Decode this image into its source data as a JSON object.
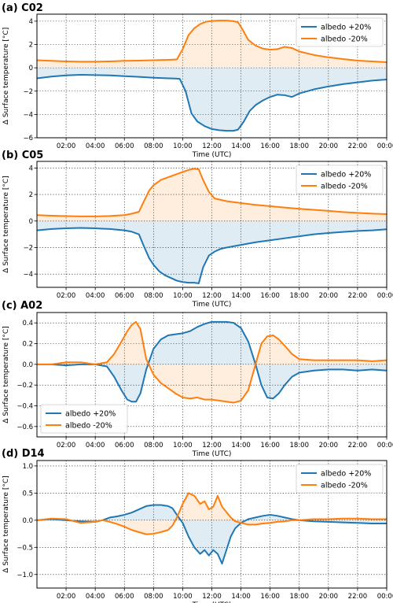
{
  "colors": {
    "albedo_plus": "#1f77b4",
    "albedo_minus": "#ff7f0e",
    "grid": "#000000"
  },
  "chart_data": [
    {
      "type": "line",
      "panel_label": "(a) C02",
      "xlabel": "Time (UTC)",
      "ylabel": "Δ Surface temperature [°C]",
      "xlim": [
        0,
        24
      ],
      "ylim": [
        -6,
        4.6
      ],
      "xticks": [
        2,
        4,
        6,
        8,
        10,
        12,
        14,
        16,
        18,
        20,
        22,
        24
      ],
      "xtick_labels": [
        "02:00",
        "04:00",
        "06:00",
        "08:00",
        "10:00",
        "12:00",
        "14:00",
        "16:00",
        "18:00",
        "20:00",
        "22:00",
        "00:00"
      ],
      "yticks": [
        -6,
        -4,
        -2,
        0,
        2,
        4
      ],
      "ytick_labels": [
        "−6",
        "−4",
        "−2",
        "0",
        "2",
        "4"
      ],
      "legend_position": "upper right",
      "grid": true,
      "series": [
        {
          "name": "albedo +20%",
          "color_key": "albedo_plus",
          "x": [
            0,
            1,
            2,
            3,
            4,
            5,
            6,
            7,
            8,
            9,
            9.5,
            9.8,
            10.2,
            10.6,
            11,
            11.5,
            12,
            12.5,
            13,
            13.5,
            13.8,
            14.2,
            14.6,
            15,
            15.5,
            16,
            16.5,
            17,
            17.5,
            18,
            19,
            20,
            21,
            22,
            23,
            24
          ],
          "y": [
            -0.9,
            -0.75,
            -0.65,
            -0.6,
            -0.62,
            -0.65,
            -0.72,
            -0.78,
            -0.85,
            -0.9,
            -0.92,
            -0.95,
            -2.0,
            -3.9,
            -4.6,
            -5.0,
            -5.25,
            -5.35,
            -5.4,
            -5.4,
            -5.3,
            -4.6,
            -3.7,
            -3.2,
            -2.8,
            -2.5,
            -2.3,
            -2.35,
            -2.5,
            -2.2,
            -1.85,
            -1.6,
            -1.4,
            -1.25,
            -1.1,
            -1.0
          ]
        },
        {
          "name": "albedo -20%",
          "color_key": "albedo_minus",
          "x": [
            0,
            1,
            2,
            3,
            4,
            5,
            6,
            7,
            8,
            9,
            9.6,
            10,
            10.4,
            10.8,
            11.2,
            11.6,
            12,
            12.5,
            13,
            13.5,
            13.8,
            14.1,
            14.5,
            15,
            15.5,
            16,
            16.5,
            17,
            17.5,
            18,
            19,
            20,
            21,
            22,
            23,
            24
          ],
          "y": [
            0.65,
            0.6,
            0.55,
            0.52,
            0.52,
            0.55,
            0.6,
            0.62,
            0.65,
            0.68,
            0.72,
            1.6,
            2.8,
            3.4,
            3.75,
            3.95,
            4.02,
            4.05,
            4.05,
            4.0,
            3.9,
            3.3,
            2.4,
            1.9,
            1.65,
            1.55,
            1.6,
            1.8,
            1.7,
            1.4,
            1.1,
            0.9,
            0.75,
            0.62,
            0.55,
            0.48
          ]
        }
      ]
    },
    {
      "type": "line",
      "panel_label": "(b) C05",
      "xlabel": "Time (UTC)",
      "ylabel": "Δ Surface temperature [°C]",
      "xlim": [
        0,
        24
      ],
      "ylim": [
        -5,
        4.5
      ],
      "xticks": [
        2,
        4,
        6,
        8,
        10,
        12,
        14,
        16,
        18,
        20,
        22,
        24
      ],
      "xtick_labels": [
        "02:00",
        "04:00",
        "06:00",
        "08:00",
        "10:00",
        "12:00",
        "14:00",
        "16:00",
        "18:00",
        "20:00",
        "22:00",
        "00:00"
      ],
      "yticks": [
        -4,
        -2,
        0,
        2,
        4
      ],
      "ytick_labels": [
        "−4",
        "−2",
        "0",
        "2",
        "4"
      ],
      "legend_position": "upper right",
      "grid": true,
      "series": [
        {
          "name": "albedo +20%",
          "color_key": "albedo_plus",
          "x": [
            0,
            1,
            2,
            3,
            4,
            5,
            6,
            6.5,
            7,
            7.3,
            7.7,
            8,
            8.4,
            8.8,
            9.2,
            9.6,
            10,
            10.4,
            10.8,
            11.1,
            11.4,
            11.8,
            12.2,
            12.6,
            13,
            14,
            15,
            16,
            17,
            18,
            19,
            20,
            21,
            22,
            23,
            24
          ],
          "y": [
            -0.7,
            -0.6,
            -0.55,
            -0.52,
            -0.55,
            -0.6,
            -0.7,
            -0.8,
            -1.0,
            -1.8,
            -2.8,
            -3.3,
            -3.8,
            -4.1,
            -4.3,
            -4.5,
            -4.6,
            -4.65,
            -4.65,
            -4.7,
            -3.5,
            -2.6,
            -2.3,
            -2.1,
            -2.0,
            -1.8,
            -1.6,
            -1.45,
            -1.3,
            -1.15,
            -1.0,
            -0.9,
            -0.82,
            -0.75,
            -0.7,
            -0.62
          ]
        },
        {
          "name": "albedo -20%",
          "color_key": "albedo_minus",
          "x": [
            0,
            1,
            2,
            3,
            4,
            5,
            6,
            6.5,
            7,
            7.3,
            7.7,
            8,
            8.5,
            9,
            9.5,
            10,
            10.4,
            10.8,
            11.1,
            11.4,
            11.8,
            12.2,
            13,
            14,
            15,
            16,
            17,
            18,
            19,
            20,
            21,
            22,
            23,
            24
          ],
          "y": [
            0.45,
            0.4,
            0.37,
            0.35,
            0.35,
            0.38,
            0.45,
            0.55,
            0.7,
            1.4,
            2.3,
            2.7,
            3.1,
            3.3,
            3.5,
            3.7,
            3.85,
            3.95,
            3.9,
            3.1,
            2.2,
            1.7,
            1.5,
            1.35,
            1.22,
            1.12,
            1.02,
            0.92,
            0.85,
            0.77,
            0.68,
            0.62,
            0.56,
            0.52
          ]
        }
      ]
    },
    {
      "type": "line",
      "panel_label": "(c) A02",
      "xlabel": "Time (UTC)",
      "ylabel": "Δ Surface temperature [°C]",
      "xlim": [
        0,
        24
      ],
      "ylim": [
        -0.7,
        0.5
      ],
      "xticks": [
        2,
        4,
        6,
        8,
        10,
        12,
        14,
        16,
        18,
        20,
        22,
        24
      ],
      "xtick_labels": [
        "02:00",
        "04:00",
        "06:00",
        "08:00",
        "10:00",
        "12:00",
        "14:00",
        "16:00",
        "18:00",
        "20:00",
        "22:00",
        "00:00"
      ],
      "yticks": [
        -0.6,
        -0.4,
        -0.2,
        0.0,
        0.2,
        0.4
      ],
      "ytick_labels": [
        "−0.6",
        "−0.4",
        "−0.2",
        "0.0",
        "0.2",
        "0.4"
      ],
      "legend_position": "lower left",
      "grid": true,
      "series": [
        {
          "name": "albedo +20%",
          "color_key": "albedo_plus",
          "x": [
            0,
            1,
            2,
            3,
            4,
            4.8,
            5.3,
            5.8,
            6.2,
            6.5,
            6.8,
            7.1,
            7.5,
            8,
            8.5,
            9,
            9.5,
            10,
            10.5,
            11,
            11.5,
            12,
            12.5,
            13,
            13.5,
            14,
            14.5,
            15,
            15.4,
            15.8,
            16.2,
            16.6,
            17,
            17.5,
            18,
            19,
            20,
            21,
            22,
            23,
            24
          ],
          "y": [
            0.0,
            0.0,
            -0.01,
            0.0,
            0.0,
            -0.02,
            -0.12,
            -0.25,
            -0.34,
            -0.36,
            -0.36,
            -0.28,
            -0.05,
            0.15,
            0.24,
            0.28,
            0.29,
            0.3,
            0.32,
            0.36,
            0.39,
            0.41,
            0.41,
            0.41,
            0.4,
            0.35,
            0.22,
            0.0,
            -0.2,
            -0.32,
            -0.33,
            -0.28,
            -0.2,
            -0.12,
            -0.08,
            -0.06,
            -0.05,
            -0.05,
            -0.06,
            -0.05,
            -0.06
          ]
        },
        {
          "name": "albedo -20%",
          "color_key": "albedo_minus",
          "x": [
            0,
            1,
            2,
            3,
            4,
            4.8,
            5.3,
            5.8,
            6.2,
            6.5,
            6.8,
            7.1,
            7.5,
            8,
            8.5,
            9,
            9.5,
            10,
            10.5,
            11,
            11.5,
            12,
            12.5,
            13,
            13.5,
            14,
            14.5,
            15,
            15.4,
            15.8,
            16.2,
            16.6,
            17,
            17.5,
            18,
            19,
            20,
            21,
            22,
            23,
            24
          ],
          "y": [
            0.0,
            0.0,
            0.02,
            0.02,
            0.0,
            0.02,
            0.1,
            0.22,
            0.32,
            0.38,
            0.41,
            0.34,
            0.05,
            -0.1,
            -0.18,
            -0.23,
            -0.28,
            -0.32,
            -0.33,
            -0.32,
            -0.34,
            -0.34,
            -0.35,
            -0.36,
            -0.37,
            -0.35,
            -0.25,
            0.0,
            0.2,
            0.27,
            0.28,
            0.24,
            0.18,
            0.1,
            0.05,
            0.04,
            0.04,
            0.04,
            0.04,
            0.03,
            0.04
          ]
        }
      ]
    },
    {
      "type": "line",
      "panel_label": "(d) D14",
      "xlabel": "Time (UTC)",
      "ylabel": "Δ Surface temperature [°C]",
      "xlim": [
        0,
        24
      ],
      "ylim": [
        -1.25,
        1.1
      ],
      "xticks": [
        2,
        4,
        6,
        8,
        10,
        12,
        14,
        16,
        18,
        20,
        22,
        24
      ],
      "xtick_labels": [
        "02:00",
        "04:00",
        "06:00",
        "08:00",
        "10:00",
        "12:00",
        "14:00",
        "16:00",
        "18:00",
        "20:00",
        "22:00",
        "00:00"
      ],
      "yticks": [
        -1.0,
        -0.5,
        0.0,
        0.5,
        1.0
      ],
      "ytick_labels": [
        "−1.0",
        "−0.5",
        "0.0",
        "0.5",
        "1.0"
      ],
      "legend_position": "upper right",
      "grid": true,
      "series": [
        {
          "name": "albedo +20%",
          "color_key": "albedo_plus",
          "x": [
            0,
            1,
            2,
            3,
            4,
            4.5,
            5,
            5.5,
            6,
            6.5,
            7,
            7.5,
            8,
            8.5,
            9,
            9.3,
            9.6,
            10,
            10.4,
            10.8,
            11.2,
            11.5,
            11.8,
            12.1,
            12.4,
            12.7,
            13,
            13.3,
            13.6,
            14,
            14.5,
            15,
            15.5,
            16,
            16.5,
            17,
            17.5,
            18,
            19,
            20,
            21,
            22,
            23,
            24
          ],
          "y": [
            0.0,
            0.02,
            0.0,
            -0.02,
            -0.03,
            0.0,
            0.05,
            0.07,
            0.1,
            0.14,
            0.2,
            0.26,
            0.28,
            0.28,
            0.26,
            0.22,
            0.1,
            -0.05,
            -0.3,
            -0.5,
            -0.62,
            -0.55,
            -0.65,
            -0.55,
            -0.62,
            -0.8,
            -0.55,
            -0.3,
            -0.15,
            -0.05,
            0.02,
            0.05,
            0.08,
            0.1,
            0.08,
            0.05,
            0.02,
            0.0,
            -0.02,
            -0.03,
            -0.04,
            -0.05,
            -0.06,
            -0.06
          ]
        },
        {
          "name": "albedo -20%",
          "color_key": "albedo_minus",
          "x": [
            0,
            1,
            2,
            3,
            4,
            4.5,
            5,
            5.5,
            6,
            6.5,
            7,
            7.5,
            8,
            8.5,
            9,
            9.3,
            9.6,
            10,
            10.4,
            10.8,
            11.2,
            11.5,
            11.8,
            12.1,
            12.4,
            12.7,
            13,
            13.3,
            13.6,
            14,
            14.5,
            15,
            15.5,
            16,
            16.5,
            17,
            17.5,
            18,
            19,
            20,
            21,
            22,
            23,
            24
          ],
          "y": [
            0.0,
            0.03,
            0.02,
            -0.05,
            -0.03,
            0.0,
            -0.03,
            -0.07,
            -0.12,
            -0.18,
            -0.22,
            -0.26,
            -0.25,
            -0.22,
            -0.18,
            -0.1,
            0.05,
            0.3,
            0.5,
            0.45,
            0.3,
            0.35,
            0.2,
            0.25,
            0.45,
            0.25,
            0.15,
            0.05,
            -0.02,
            -0.05,
            -0.08,
            -0.08,
            -0.06,
            -0.05,
            -0.03,
            -0.02,
            0.0,
            0.0,
            0.02,
            0.02,
            0.03,
            0.03,
            0.02,
            0.02
          ]
        }
      ]
    }
  ]
}
